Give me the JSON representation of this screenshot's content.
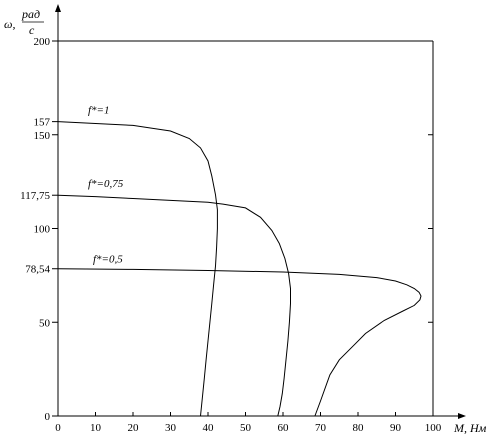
{
  "chart_data": {
    "type": "line",
    "xlabel": "М, Нм",
    "ylabel": {
      "prefix": "ω,",
      "numerator": "рад",
      "denominator": "с"
    },
    "xlim": [
      0,
      100
    ],
    "ylim": [
      0,
      200
    ],
    "x_ticks": [
      0,
      10,
      20,
      30,
      40,
      50,
      60,
      70,
      80,
      90,
      100
    ],
    "y_ticks_left": [
      "0",
      "50",
      "78,54",
      "100",
      "117,75",
      "150",
      "157",
      "200"
    ],
    "y_ticks_left_values": [
      0,
      50,
      78.54,
      100,
      117.75,
      150,
      157,
      200
    ],
    "y_ticks_right": [
      0,
      50,
      100,
      150
    ],
    "grid": false,
    "series": [
      {
        "label": "f*=1",
        "x": [
          0,
          10,
          20,
          30,
          35,
          38,
          40,
          41,
          42,
          42.5,
          42.5,
          42.3,
          42,
          41.5,
          41,
          40.5,
          40,
          39.5,
          39,
          38.5,
          38
        ],
        "y": [
          157,
          156,
          155,
          152,
          148,
          143,
          136,
          128,
          118,
          110,
          100,
          90,
          80,
          70,
          60,
          50,
          40,
          30,
          20,
          10,
          0
        ]
      },
      {
        "label": "f*=0,75",
        "x": [
          0,
          10,
          20,
          30,
          40,
          44,
          50,
          54,
          57,
          59,
          60.5,
          61.5,
          62,
          62,
          61.7,
          61.3,
          60.8,
          60.3,
          59.8,
          59.2,
          58.6
        ],
        "y": [
          117.75,
          117,
          116,
          115,
          114,
          113,
          111,
          106,
          99,
          92,
          84,
          76,
          68,
          60,
          50,
          40,
          30,
          20,
          12,
          5,
          0
        ]
      },
      {
        "label": "f*=0,5",
        "x": [
          0,
          20,
          40,
          60,
          75,
          85,
          90,
          93,
          95,
          96.3,
          96.8,
          96.5,
          95,
          92,
          87,
          82,
          79,
          75,
          72.5,
          70,
          68.5
        ],
        "y": [
          78.54,
          78.2,
          77.6,
          76.8,
          75.5,
          73.8,
          72,
          70,
          68,
          66,
          64,
          62,
          59,
          56,
          51,
          44,
          38,
          30,
          22,
          8,
          0
        ]
      }
    ]
  }
}
